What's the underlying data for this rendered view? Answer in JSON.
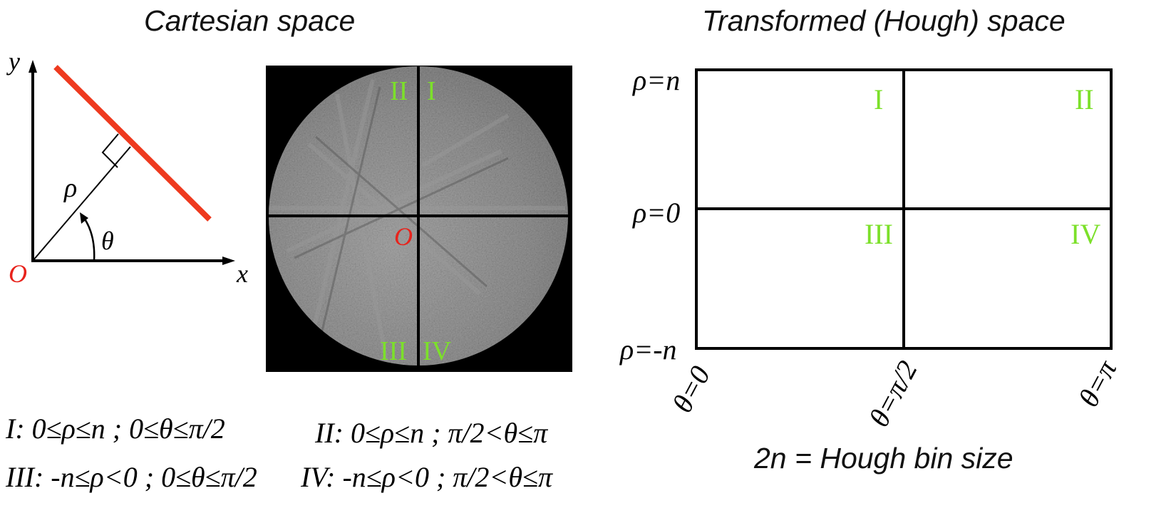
{
  "titles": {
    "cartesian": "Cartesian space",
    "hough": "Transformed (Hough) space"
  },
  "axes_diagram": {
    "x_label": "x",
    "y_label": "y",
    "origin_label": "O",
    "rho_label": "ρ",
    "theta_label": "θ"
  },
  "pattern_image": {
    "origin_label": "O",
    "quadrants": {
      "top_left": "II",
      "top_right": "I",
      "bottom_left": "III",
      "bottom_right": "IV"
    }
  },
  "hough_grid": {
    "rho_labels": {
      "top": "ρ=n",
      "middle": "ρ=0",
      "bottom": "ρ=-n"
    },
    "theta_labels": {
      "left": "θ=0",
      "middle": "θ=π/2",
      "right": "θ=π"
    },
    "quadrants": {
      "top_left": "I",
      "top_right": "II",
      "bottom_left": "III",
      "bottom_right": "IV"
    },
    "caption": "2n = Hough bin size"
  },
  "formulas": {
    "q1": "I: 0≤ρ≤n ; 0≤θ≤π/2",
    "q2": "II: 0≤ρ≤n ; π/2<θ≤π",
    "q3": "III: -n≤ρ<0 ; 0≤θ≤π/2",
    "q4": "IV: -n≤ρ<0 ; π/2<θ≤π"
  },
  "colors": {
    "line": "#ee3a1f",
    "origin": "#e8231c",
    "quadrant_label": "#7CE02A",
    "axis": "#000000"
  }
}
